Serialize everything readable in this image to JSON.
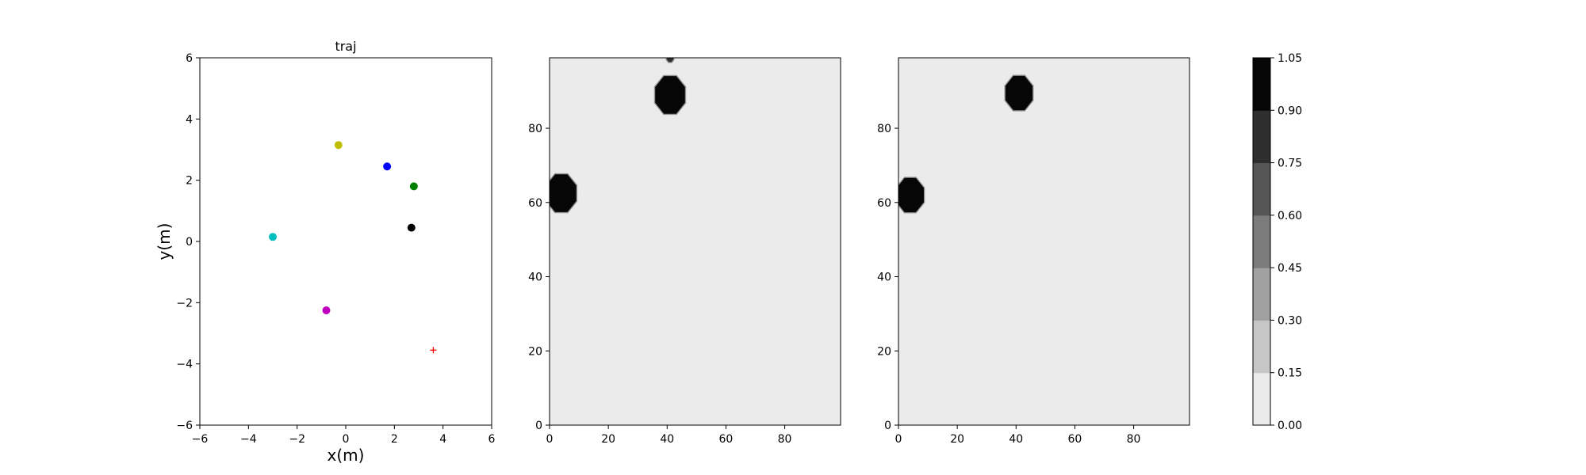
{
  "chart_data": [
    {
      "type": "scatter",
      "title": "traj",
      "xlabel": "x(m)",
      "ylabel": "y(m)",
      "xlim": [
        -6,
        6
      ],
      "ylim": [
        -6,
        6
      ],
      "xticks": [
        -6,
        -4,
        -2,
        0,
        2,
        4,
        6
      ],
      "yticks": [
        -6,
        -4,
        -2,
        0,
        2,
        4,
        6
      ],
      "grid": false,
      "points": [
        {
          "x": -0.3,
          "y": 3.15,
          "color": "#bfbf00",
          "marker": "circle"
        },
        {
          "x": 1.7,
          "y": 2.45,
          "color": "#0000ff",
          "marker": "circle"
        },
        {
          "x": 2.8,
          "y": 1.8,
          "color": "#008000",
          "marker": "circle"
        },
        {
          "x": 2.7,
          "y": 0.45,
          "color": "#000000",
          "marker": "circle"
        },
        {
          "x": -3.0,
          "y": 0.15,
          "color": "#00bfbf",
          "marker": "circle"
        },
        {
          "x": -0.8,
          "y": -2.25,
          "color": "#bf00bf",
          "marker": "circle"
        },
        {
          "x": 3.6,
          "y": -3.55,
          "color": "#ff0000",
          "marker": "plus"
        }
      ]
    },
    {
      "type": "heatmap",
      "xlim": [
        0,
        99
      ],
      "ylim": [
        0,
        99
      ],
      "xticks": [
        0,
        20,
        40,
        60,
        80
      ],
      "yticks": [
        0,
        20,
        40,
        60,
        80
      ],
      "background_level": 0.05,
      "blobs": [
        {
          "cx": 4,
          "cy": 62.5,
          "r": 5.5,
          "level": 1.0
        },
        {
          "cx": 41,
          "cy": 89,
          "r": 5.5,
          "level": 1.0
        },
        {
          "cx": 41,
          "cy": 99,
          "r": 1.2,
          "level": 0.8
        }
      ]
    },
    {
      "type": "heatmap",
      "xlim": [
        0,
        99
      ],
      "ylim": [
        0,
        99
      ],
      "xticks": [
        0,
        20,
        40,
        60,
        80
      ],
      "yticks": [
        0,
        20,
        40,
        60,
        80
      ],
      "background_level": 0.05,
      "blobs": [
        {
          "cx": 4,
          "cy": 62,
          "r": 5.0,
          "level": 1.0
        },
        {
          "cx": 41,
          "cy": 89.5,
          "r": 5.0,
          "level": 1.0
        }
      ]
    }
  ],
  "colorbar": {
    "levels": [
      0.0,
      0.15,
      0.3,
      0.45,
      0.6,
      0.75,
      0.9,
      1.05
    ],
    "tick_labels": [
      "0.00",
      "0.15",
      "0.30",
      "0.45",
      "0.60",
      "0.75",
      "0.90",
      "1.05"
    ],
    "band_colors": [
      "#ebebeb",
      "#c6c6c6",
      "#a1a1a1",
      "#7b7b7b",
      "#565656",
      "#2e2e2e",
      "#060606"
    ]
  }
}
